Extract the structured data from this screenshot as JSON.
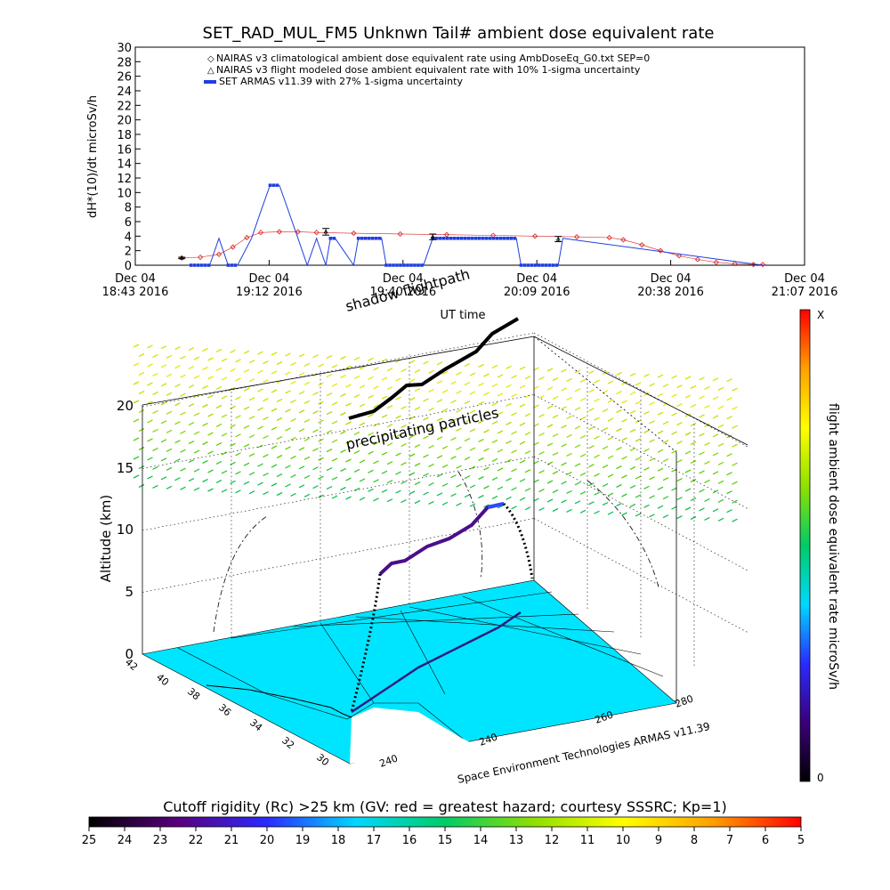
{
  "page_title": "SET_RAD_MUL_FM5 Unknwn Tail#  ambient dose equivalent rate",
  "chart_data": [
    {
      "type": "line",
      "title": "SET_RAD_MUL_FM5 Unknwn Tail#  ambient dose equivalent rate",
      "ylabel": "dH*(10)/dt microSv/h",
      "xlabel": "UT time",
      "ylim": [
        0,
        30
      ],
      "y_ticks": [
        0,
        2,
        4,
        6,
        8,
        10,
        12,
        14,
        16,
        18,
        20,
        22,
        24,
        26,
        28,
        30
      ],
      "x_ticks": [
        {
          "date": "Dec 04",
          "time": "18:43 2016"
        },
        {
          "date": "Dec 04",
          "time": "19:12 2016"
        },
        {
          "date": "Dec 04",
          "time": "19:40 2016"
        },
        {
          "date": "Dec 04",
          "time": "20:09 2016"
        },
        {
          "date": "Dec 04",
          "time": "20:38 2016"
        },
        {
          "date": "Dec 04",
          "time": "21:07 2016"
        }
      ],
      "x_range": [
        "18:43",
        "21:07"
      ],
      "legend_position": "top-center",
      "series": [
        {
          "name": "NAIRAS v3 climatological ambient dose equivalent rate using AmbDoseEq_G0.txt SEP=0",
          "color": "#d62020",
          "marker": "diamond",
          "x": [
            "18:53",
            "18:57",
            "19:01",
            "19:04",
            "19:07",
            "19:10",
            "19:14",
            "19:18",
            "19:22",
            "19:30",
            "19:40",
            "19:50",
            "20:00",
            "20:09",
            "20:18",
            "20:25",
            "20:28",
            "20:32",
            "20:36",
            "20:40",
            "20:44",
            "20:48",
            "20:52",
            "20:56",
            "20:58"
          ],
          "values": [
            1.0,
            1.1,
            1.5,
            2.5,
            3.8,
            4.5,
            4.6,
            4.6,
            4.5,
            4.4,
            4.3,
            4.2,
            4.1,
            4.0,
            3.9,
            3.8,
            3.5,
            2.8,
            2.0,
            1.3,
            0.8,
            0.4,
            0.2,
            0.1,
            0.1
          ]
        },
        {
          "name": "NAIRAS v3 flight modeled dose ambient equivalent rate with 10% 1-sigma uncertainty",
          "color": "#000000",
          "marker": "triangle-errorbar",
          "x": [
            "18:53",
            "19:24",
            "19:47",
            "20:14"
          ],
          "values": [
            1.0,
            4.6,
            3.9,
            3.6
          ],
          "errors": [
            0.1,
            0.46,
            0.39,
            0.36
          ]
        },
        {
          "name": "SET ARMAS v11.39 with 27% 1-sigma uncertainty",
          "color": "#1f3fe0",
          "marker": "square",
          "x": [
            "18:55",
            "18:59",
            "19:01",
            "19:03",
            "19:05",
            "19:08",
            "19:10",
            "19:12",
            "19:14",
            "19:16",
            "19:18",
            "19:20",
            "19:22",
            "19:24",
            "19:25",
            "19:26",
            "19:30",
            "19:31",
            "19:36",
            "19:37",
            "19:45",
            "19:47",
            "20:05",
            "20:06",
            "20:14",
            "20:15",
            "20:58"
          ],
          "values": [
            0,
            0,
            3.7,
            0,
            0,
            3.7,
            7.4,
            11.0,
            11.0,
            7.4,
            3.7,
            0,
            3.7,
            0,
            3.7,
            3.7,
            0,
            3.7,
            3.7,
            0,
            0,
            3.7,
            3.7,
            0,
            0,
            3.7,
            0
          ]
        }
      ]
    },
    {
      "type": "scatter",
      "title": "",
      "zlabel": "Altitude (km)",
      "z_ticks": [
        "0",
        "5",
        "10",
        "15",
        "20"
      ],
      "lat_ticks": [
        "30",
        "32",
        "34",
        "36",
        "38",
        "40",
        "42"
      ],
      "lon_ticks": [
        "240",
        "240",
        "260",
        "280"
      ],
      "annotations": [
        "shadow flightpath",
        "precipitating particles",
        "UT time"
      ],
      "footer": "Space Environment Technologies ARMAS v11.39"
    }
  ],
  "dose_colorbar": {
    "label": "flight ambient dose equivalent rate microSv/h",
    "top_label": "X",
    "bottom_label": "0",
    "colors": [
      "#000000",
      "#3a007a",
      "#2a2aff",
      "#00d8ff",
      "#00cc66",
      "#8ee000",
      "#ffff00",
      "#ffa000",
      "#ff0000"
    ]
  },
  "rigidity_colorbar": {
    "label": "Cutoff rigidity (Rc) >25 km (GV: red = greatest hazard; courtesy SSSRC; Kp=1)",
    "ticks": [
      "25",
      "24",
      "23",
      "22",
      "21",
      "20",
      "19",
      "18",
      "17",
      "16",
      "15",
      "14",
      "13",
      "12",
      "11",
      "10",
      "9",
      "8",
      "7",
      "6",
      "5"
    ],
    "colors": [
      "#000000",
      "#5a007f",
      "#2a2aff",
      "#00d8ff",
      "#00cc66",
      "#8ee000",
      "#ffff00",
      "#ffa000",
      "#ff0000"
    ]
  },
  "colors": {
    "terrain": "#00e5ff",
    "grid": "#000000"
  }
}
